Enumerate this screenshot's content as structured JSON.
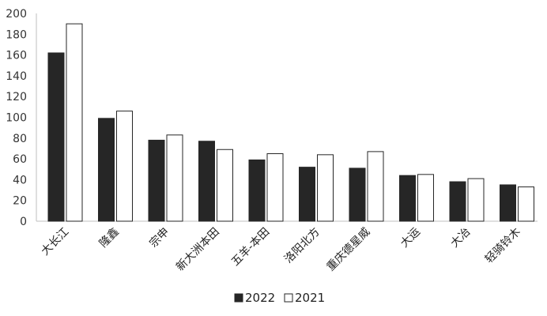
{
  "chart_data": {
    "type": "bar",
    "categories": [
      "大长江",
      "隆鑫",
      "宗申",
      "新大洲本田",
      "五羊-本田",
      "洛阳北方",
      "重庆德星威",
      "大运",
      "大冶",
      "轻骑铃木"
    ],
    "series": [
      {
        "name": "2022",
        "values": [
          162,
          99,
          78,
          77,
          59,
          52,
          51,
          44,
          38,
          35
        ],
        "color": "#262626"
      },
      {
        "name": "2021",
        "values": [
          190,
          106,
          83,
          69,
          65,
          64,
          67,
          45,
          41,
          33
        ],
        "color": "#ffffff"
      }
    ],
    "ylim": [
      0,
      200
    ],
    "yticks": [
      0,
      20,
      40,
      60,
      80,
      100,
      120,
      140,
      160,
      180,
      200
    ],
    "grid": false,
    "legend_position": "bottom-center",
    "title": "",
    "xlabel": "",
    "ylabel": ""
  }
}
